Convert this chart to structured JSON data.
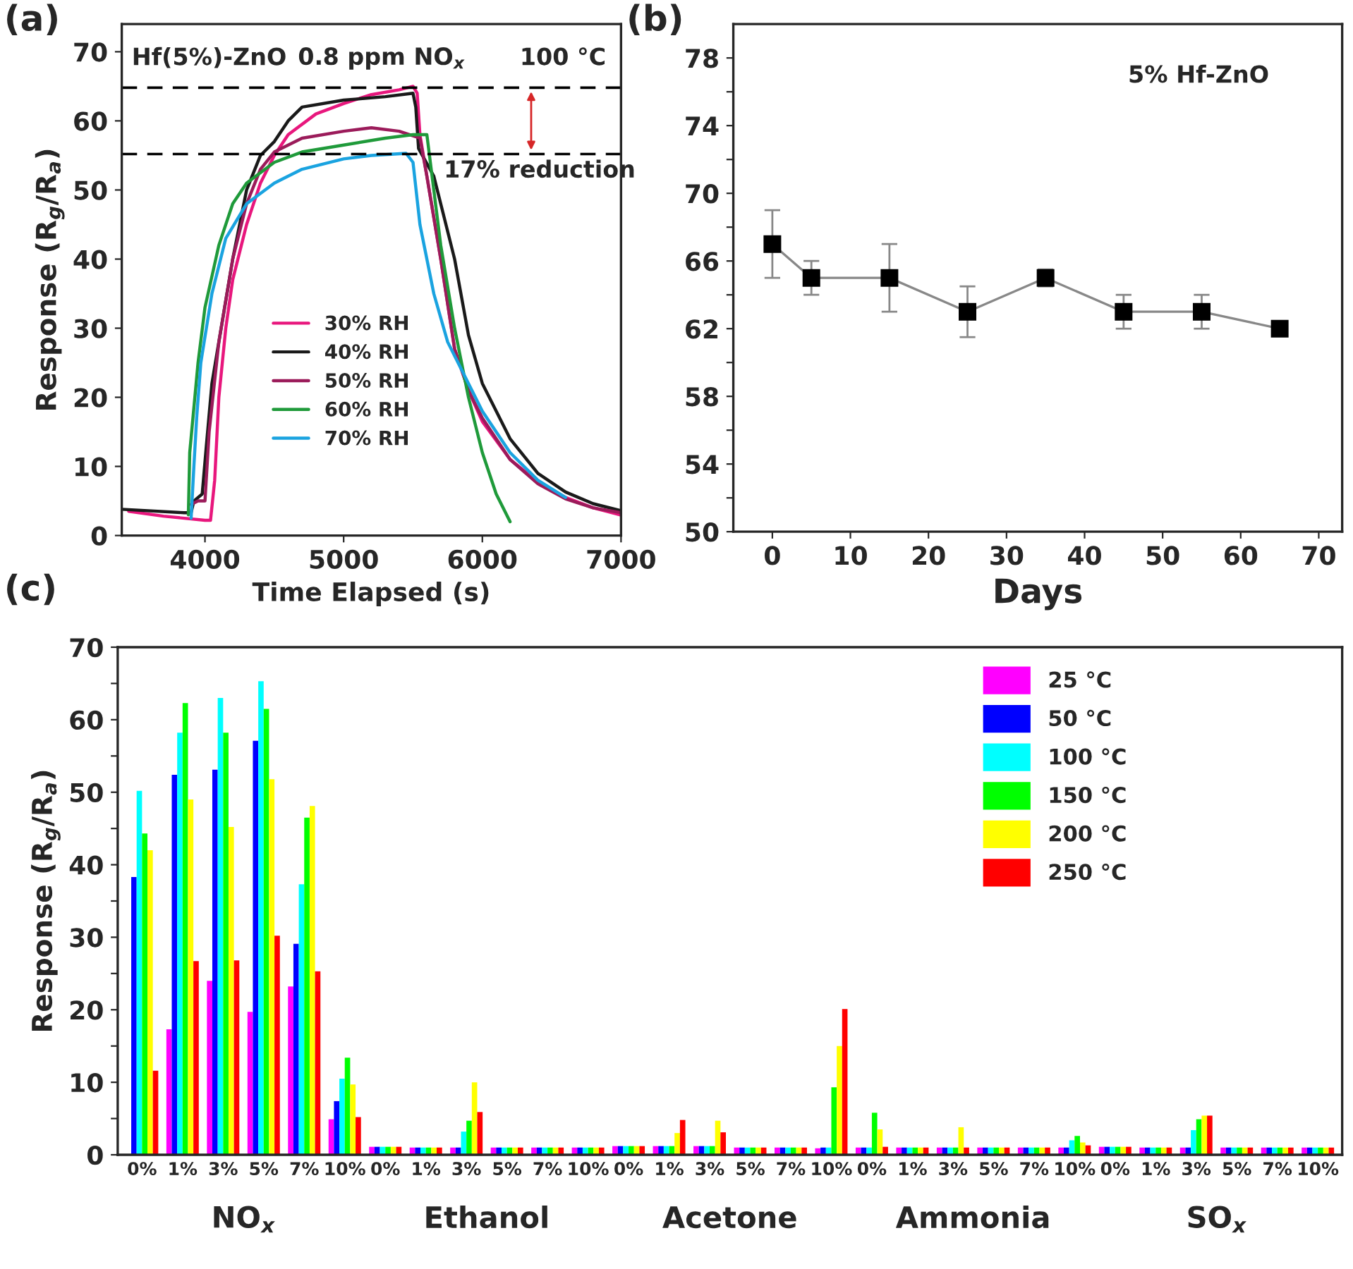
{
  "chart_data": [
    {
      "type": "line",
      "ylabel": "Response (R$_{g}$/R$_{a}$)",
      "xlabel": "Time Elapsed (s)",
      "xlim": [
        3400,
        7000
      ],
      "xticks": [
        4000,
        5000,
        6000,
        7000
      ],
      "ylim": [
        0,
        74
      ],
      "yticks": [
        0,
        10,
        20,
        30,
        40,
        50,
        60,
        70
      ],
      "legend": "center",
      "series": [
        {
          "name": "30% RH",
          "color": "#e8177d",
          "x": [
            3450,
            3700,
            4000,
            4040,
            4070,
            4100,
            4150,
            4200,
            4300,
            4400,
            4500,
            4600,
            4800,
            5000,
            5200,
            5400,
            5500,
            5530,
            5550,
            5600,
            5700,
            5800,
            5900,
            6000,
            6200,
            6400,
            6600,
            6800,
            6990
          ],
          "values": [
            3.5,
            2.8,
            2.2,
            2.2,
            8,
            20,
            30,
            37,
            45,
            51,
            55,
            58,
            61,
            62.5,
            63.8,
            64.5,
            65,
            64,
            58,
            52,
            40,
            27,
            21,
            16.5,
            11,
            7.8,
            5.5,
            4,
            3
          ]
        },
        {
          "name": "40% RH",
          "color": "#1a1a1a",
          "x": [
            3400,
            3850,
            3900,
            3920,
            3980,
            4010,
            4050,
            4100,
            4200,
            4300,
            4400,
            4500,
            4600,
            4700,
            5000,
            5300,
            5500,
            5520,
            5540,
            5650,
            5800,
            5900,
            6000,
            6200,
            6400,
            6600,
            6800,
            7000
          ],
          "values": [
            3.8,
            3.3,
            3.3,
            5,
            6,
            13,
            22,
            28,
            40,
            50,
            55,
            57,
            60,
            62,
            63,
            63.5,
            64,
            62,
            56,
            52,
            40,
            29,
            22,
            14,
            9,
            6.3,
            4.6,
            3.6
          ]
        },
        {
          "name": "50% RH",
          "color": "#9b1b5a",
          "x": [
            3900,
            3950,
            4000,
            4030,
            4100,
            4200,
            4300,
            4400,
            4500,
            4700,
            5000,
            5200,
            5400,
            5550,
            5600,
            5700,
            5800,
            5900,
            6000,
            6200,
            6400,
            6600,
            6800,
            7000
          ],
          "values": [
            4.5,
            5,
            5,
            15,
            28,
            40,
            48,
            53,
            55.5,
            57.5,
            58.5,
            59,
            58.5,
            57.5,
            52,
            40,
            27,
            21,
            17,
            11,
            7.5,
            5.3,
            4,
            3.3
          ]
        },
        {
          "name": "60% RH",
          "color": "#1f9a3a",
          "x": [
            3880,
            3890,
            3950,
            4000,
            4100,
            4200,
            4300,
            4500,
            4700,
            5000,
            5300,
            5500,
            5600,
            5650,
            5700,
            5800,
            5900,
            6000,
            6100,
            6200
          ],
          "values": [
            3,
            12,
            25,
            33,
            42,
            48,
            51,
            54,
            55.5,
            56.5,
            57.5,
            58,
            58,
            50,
            42,
            30,
            20,
            12,
            6,
            2
          ]
        },
        {
          "name": "70% RH",
          "color": "#1aa3e0",
          "x": [
            3900,
            3920,
            3940,
            3970,
            4050,
            4150,
            4300,
            4500,
            4700,
            5000,
            5200,
            5450,
            5500,
            5550,
            5650,
            5750,
            5900,
            6000,
            6200,
            6400,
            6600
          ],
          "values": [
            2.5,
            10,
            17,
            25,
            35,
            43,
            48,
            51,
            53,
            54.5,
            55,
            55.3,
            54,
            45,
            35,
            28,
            22,
            18,
            12,
            8,
            5.5
          ]
        }
      ],
      "ref_lines": [
        {
          "axis": "y",
          "value": 64.8,
          "color": "#000000",
          "line_style": "dashed"
        },
        {
          "axis": "y",
          "value": 55.2,
          "color": "#000000",
          "line_style": "dashed"
        }
      ],
      "annotations": [
        "(a)",
        "Hf(5%)-ZnO",
        "0.8 ppm NO$_{x}$",
        "100 °C",
        "17% reduction"
      ]
    },
    {
      "type": "line",
      "xlabel": "Days",
      "xlim": [
        -5,
        73
      ],
      "xticks": [
        0,
        10,
        20,
        30,
        40,
        50,
        60,
        70
      ],
      "ylim": [
        50,
        80
      ],
      "yticks": [
        50,
        {
          "value": 52,
          "label": null
        },
        54,
        {
          "value": 56,
          "label": null
        },
        58,
        {
          "value": 60,
          "label": null
        },
        62,
        {
          "value": 64,
          "label": null
        },
        66,
        {
          "value": 68,
          "label": null
        },
        70,
        {
          "value": 72,
          "label": null
        },
        74,
        {
          "value": 76,
          "label": null
        },
        78
      ],
      "marker": "square",
      "series": [
        {
          "color": "#000000",
          "x": [
            0,
            5,
            15,
            25,
            35,
            45,
            55,
            65
          ],
          "values": [
            67,
            65,
            65,
            63,
            65,
            63,
            63,
            62
          ],
          "errors": [
            [
              65,
              69
            ],
            [
              64,
              66
            ],
            [
              63,
              67
            ],
            [
              61.5,
              64.5
            ],
            [
              64.5,
              65.5
            ],
            [
              62,
              64
            ],
            [
              62,
              64
            ],
            [
              61.6,
              62.4
            ]
          ]
        }
      ],
      "annotations": [
        "(b)",
        "5% Hf-ZnO"
      ]
    },
    {
      "type": "bar",
      "ylabel": "Response (R$_{g}$/R$_{a}$)",
      "ylim": [
        0,
        70
      ],
      "yticks": [
        0,
        {
          "value": 5,
          "label": null
        },
        10,
        {
          "value": 15,
          "label": null
        },
        20,
        {
          "value": 25,
          "label": null
        },
        30,
        {
          "value": 35,
          "label": null
        },
        40,
        {
          "value": 45,
          "label": null
        },
        50,
        {
          "value": 55,
          "label": null
        },
        60,
        {
          "value": 65,
          "label": null
        },
        70
      ],
      "legend": "top right",
      "categories": [
        "0%",
        "1%",
        "3%",
        "5%",
        "7%",
        "10%",
        "0%",
        "1%",
        "3%",
        "5%",
        "7%",
        "10%",
        "0%",
        "1%",
        "3%",
        "5%",
        "7%",
        "10%",
        "0%",
        "1%",
        "3%",
        "5%",
        "7%",
        "10%",
        "0%",
        "1%",
        "3%",
        "5%",
        "7%",
        "10%"
      ],
      "series": [
        {
          "name": "25 °C",
          "color": "#ff00ff",
          "values": [
            null,
            17.3,
            24,
            19.7,
            23.2,
            4.9,
            1.1,
            1,
            1,
            1,
            1,
            1,
            1.2,
            1.2,
            1.2,
            1,
            1,
            0.9,
            1,
            1,
            1,
            1,
            1,
            1,
            1.1,
            1,
            1,
            1,
            1,
            1
          ]
        },
        {
          "name": "50 °C",
          "color": "#0000ff",
          "values": [
            38.3,
            52.4,
            53.1,
            57.1,
            29.1,
            7.4,
            1.1,
            1,
            1,
            1,
            1,
            1,
            1.2,
            1.2,
            1.2,
            1,
            1,
            1,
            1,
            1,
            1,
            1,
            1,
            1,
            1.1,
            1,
            1,
            1,
            1,
            1
          ]
        },
        {
          "name": "100 °C",
          "color": "#00ffff",
          "values": [
            50.2,
            58.2,
            63,
            65.3,
            37.3,
            10.5,
            1.1,
            1,
            3.2,
            1,
            1,
            1,
            1.2,
            1.2,
            1.2,
            1,
            1,
            1,
            1,
            1,
            1,
            1,
            1,
            2,
            1.1,
            1,
            3.4,
            1,
            1,
            1
          ]
        },
        {
          "name": "150 °C",
          "color": "#00ff00",
          "values": [
            44.3,
            62.3,
            58.2,
            61.5,
            46.5,
            13.4,
            1.1,
            1,
            4.7,
            1,
            1,
            1,
            1.2,
            1.2,
            1.2,
            1,
            1,
            9.3,
            5.8,
            1,
            1,
            1,
            1,
            2.6,
            1.1,
            1,
            4.9,
            1,
            1,
            1
          ]
        },
        {
          "name": "200 °C",
          "color": "#ffff00",
          "values": [
            42,
            49,
            45.2,
            51.8,
            48.1,
            9.7,
            1.1,
            1,
            10,
            1,
            1,
            1,
            1.2,
            3,
            4.7,
            1,
            1,
            15,
            3.5,
            1,
            3.8,
            1,
            1,
            1.7,
            1.1,
            1,
            5.4,
            1,
            1,
            1
          ]
        },
        {
          "name": "250 °C",
          "color": "#ff0000",
          "values": [
            11.6,
            26.7,
            26.8,
            30.2,
            25.3,
            5.2,
            1.1,
            1,
            5.9,
            1,
            1,
            1,
            1.2,
            4.8,
            3.1,
            1,
            1,
            20.1,
            1.1,
            1,
            1,
            1,
            1,
            1.3,
            1.1,
            1,
            5.4,
            1,
            1,
            1
          ]
        }
      ],
      "annotations": [
        "(c)",
        "NO$_{x}$",
        "Ethanol",
        "Acetone",
        "Ammonia",
        "SO$_{x}$"
      ]
    }
  ]
}
